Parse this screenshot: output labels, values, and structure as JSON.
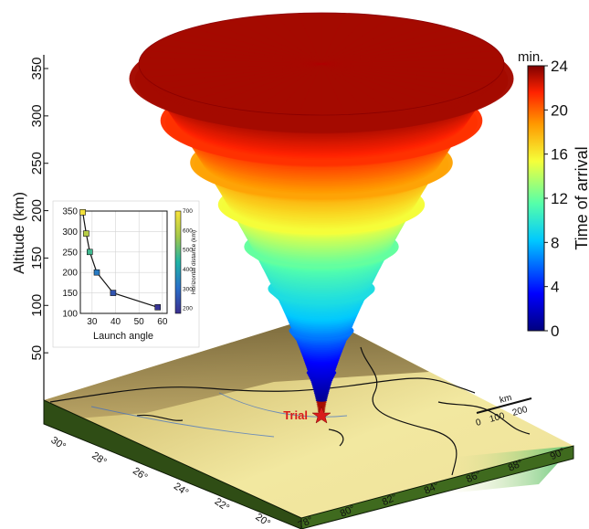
{
  "figure": {
    "annotation": "Trial",
    "scale_bar": {
      "unit": "km",
      "labels": [
        "0",
        "100",
        "200"
      ]
    }
  },
  "chart_data": [
    {
      "type": "scatter",
      "subtype": "3d-cone",
      "title": "",
      "z_axis": {
        "label": "Altitude (km)",
        "ticks": [
          50,
          100,
          150,
          200,
          250,
          300,
          350
        ],
        "range": [
          0,
          350
        ]
      },
      "longitude_ticks": [
        "78°",
        "80°",
        "82°",
        "84°",
        "86°",
        "88°",
        "90°"
      ],
      "latitude_ticks": [
        "20°",
        "22°",
        "24°",
        "26°",
        "28°",
        "30°"
      ],
      "colorbar": {
        "label": "Time of arrival",
        "unit": "min.",
        "ticks": [
          0,
          4,
          8,
          12,
          16,
          20,
          24
        ],
        "range": [
          0,
          24
        ],
        "colormap": [
          "#00007f",
          "#0000ff",
          "#00c8ff",
          "#55ffaa",
          "#f5ff3a",
          "#ff9900",
          "#ff2200",
          "#7f0000"
        ]
      },
      "layers": [
        {
          "altitude": 0,
          "time": 0.5
        },
        {
          "altitude": 100,
          "time": 7
        },
        {
          "altitude": 150,
          "time": 9.5
        },
        {
          "altitude": 175,
          "time": 11
        },
        {
          "altitude": 210,
          "time": 13.5
        },
        {
          "altitude": 250,
          "time": 16
        },
        {
          "altitude": 290,
          "time": 19
        },
        {
          "altitude": 350,
          "time": 23
        }
      ]
    },
    {
      "type": "line",
      "xlabel": "Launch angle",
      "ylabel": "",
      "xlim": [
        25,
        62
      ],
      "ylim": [
        100,
        350
      ],
      "x_ticks": [
        30,
        40,
        50,
        60
      ],
      "y_ticks": [
        100,
        150,
        200,
        250,
        300,
        350
      ],
      "grid": true,
      "colorbar": {
        "label": "Horizontal distance (km)",
        "ticks": [
          200,
          300,
          400,
          500,
          600,
          700
        ],
        "range": [
          175,
          700
        ]
      },
      "series": [
        {
          "points": [
            {
              "x": 26,
              "y": 347,
              "distance": 690
            },
            {
              "x": 27.5,
              "y": 295,
              "distance": 600
            },
            {
              "x": 29,
              "y": 250,
              "distance": 470
            },
            {
              "x": 32,
              "y": 200,
              "distance": 330
            },
            {
              "x": 39,
              "y": 150,
              "distance": 250
            },
            {
              "x": 58,
              "y": 115,
              "distance": 190
            }
          ]
        }
      ]
    }
  ]
}
